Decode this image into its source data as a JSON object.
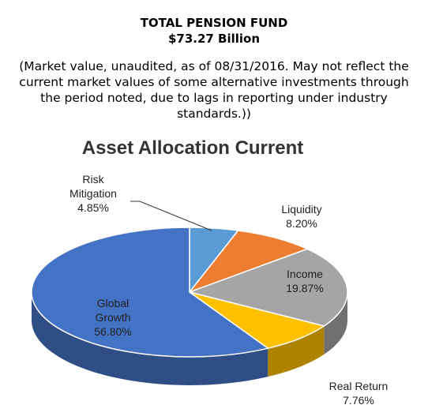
{
  "header": {
    "title": "TOTAL PENSION FUND",
    "value": "$73.27 Billion",
    "note": "(Market value, unaudited, as of 08/31/2016. May not reflect the current market values of some alternative investments through the period noted, due to lags in reporting under industry standards.))"
  },
  "chart_data": {
    "type": "pie",
    "title": "Asset Allocation Current",
    "slices": [
      {
        "label_lines": [
          "Risk",
          "Mitigation",
          "4.85%"
        ],
        "value": 4.85,
        "color": "#5b9bd5"
      },
      {
        "label_lines": [
          "Liquidity",
          "8.20%"
        ],
        "value": 8.2,
        "color": "#ed7d31"
      },
      {
        "label_lines": [
          "Income",
          "19.87%"
        ],
        "value": 19.87,
        "color": "#a5a5a5"
      },
      {
        "label_lines": [
          "Real Return",
          "7.76%"
        ],
        "value": 7.76,
        "color": "#ffc000"
      },
      {
        "label_lines": [
          "Global",
          "Growth",
          "56.80%"
        ],
        "value": 56.8,
        "color": "#4472c4"
      }
    ]
  }
}
